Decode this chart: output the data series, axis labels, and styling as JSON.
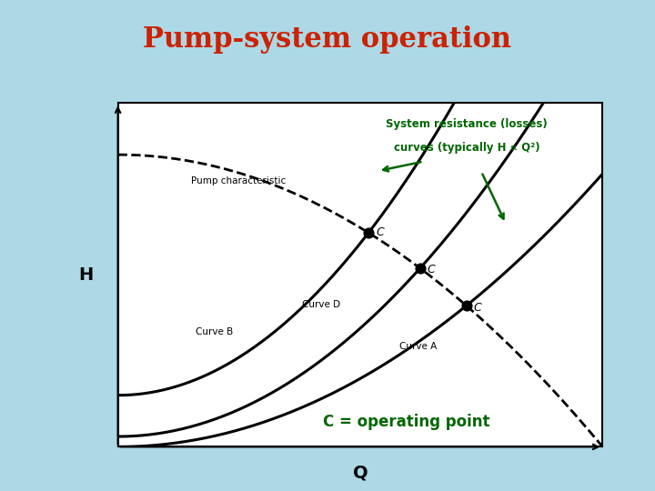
{
  "title": "Pump-system operation",
  "title_color": "#cc2200",
  "title_fontsize": 22,
  "bg_color": "#add8e6",
  "box_color": "#ffffff",
  "annotation_color": "#006600",
  "annotation_text1": "System resistance (losses)",
  "annotation_text2": "curves (typically H ∝ Q²)",
  "c_operating_text": "C = operating point",
  "xlabel": "Q",
  "ylabel": "H"
}
